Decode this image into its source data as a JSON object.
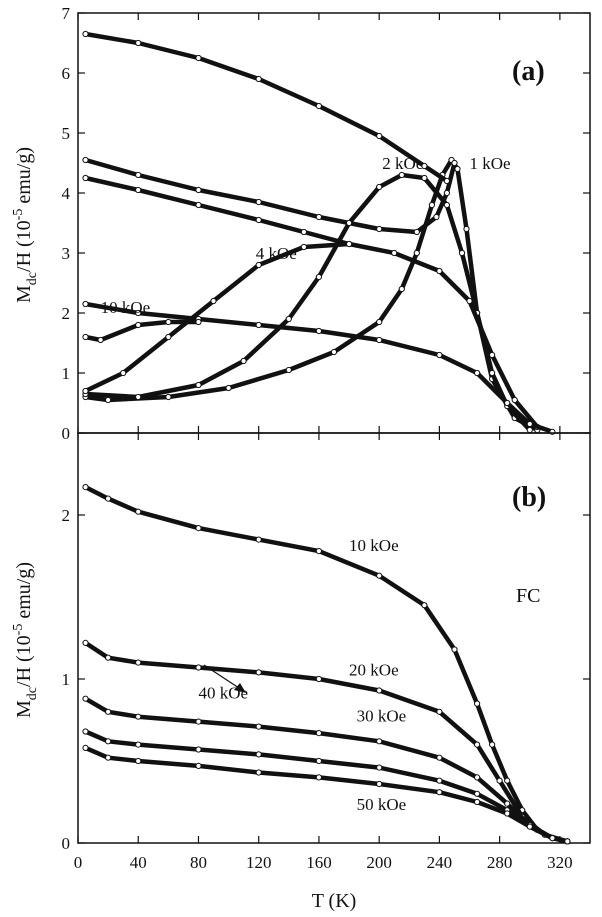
{
  "figure": {
    "xlabel": "T (K)",
    "x_ticks": [
      "0",
      "40",
      "80",
      "120",
      "160",
      "200",
      "240",
      "280",
      "320"
    ]
  },
  "chart_data": [
    {
      "type": "line",
      "panel_label": "(a)",
      "xlabel": "T (K)",
      "ylabel_main": "M",
      "ylabel_sub": "dc",
      "ylabel_rest": "/H (10",
      "ylabel_sup": "-5",
      "ylabel_unit": " emu/g)",
      "xlim": [
        0,
        340
      ],
      "ylim": [
        0,
        7
      ],
      "y_ticks": [
        "0",
        "1",
        "2",
        "3",
        "4",
        "5",
        "6",
        "7"
      ],
      "ink_color": "#111111",
      "annotations": [
        {
          "text": "1 kOe",
          "x": 260,
          "y": 4.4
        },
        {
          "text": "2 kOe",
          "x": 202,
          "y": 4.4
        },
        {
          "text": "4 kOe",
          "x": 118,
          "y": 2.9
        },
        {
          "text": "10 kOe",
          "x": 15,
          "y": 2.0
        }
      ],
      "series": [
        {
          "name": "1 kOe",
          "x": [
            5,
            20,
            60,
            100,
            140,
            170,
            200,
            215,
            225,
            235,
            242,
            248,
            252,
            258,
            265,
            275,
            290,
            305
          ],
          "y": [
            0.6,
            0.55,
            0.6,
            0.75,
            1.05,
            1.35,
            1.85,
            2.4,
            3.0,
            3.8,
            4.3,
            4.55,
            4.4,
            3.4,
            2.0,
            0.9,
            0.25,
            0.05
          ]
        },
        {
          "name": "1 kOe",
          "x": [
            5,
            40,
            80,
            120,
            160,
            200,
            225,
            238,
            245,
            250
          ],
          "y": [
            4.55,
            4.3,
            4.05,
            3.85,
            3.6,
            3.4,
            3.35,
            3.6,
            4.0,
            4.5
          ]
        },
        {
          "name": "2 kOe",
          "x": [
            5,
            40,
            80,
            110,
            140,
            160,
            180,
            200,
            215,
            230,
            245,
            255,
            265,
            275,
            285,
            300
          ],
          "y": [
            0.65,
            0.6,
            0.8,
            1.2,
            1.9,
            2.6,
            3.5,
            4.1,
            4.3,
            4.25,
            3.8,
            3.0,
            2.0,
            1.0,
            0.45,
            0.05
          ]
        },
        {
          "name": "2 kOe",
          "x": [
            5,
            40,
            80,
            120,
            160,
            200,
            230,
            245
          ],
          "y": [
            6.65,
            6.5,
            6.25,
            5.9,
            5.45,
            4.95,
            4.45,
            4.2
          ]
        },
        {
          "name": "4 kOe",
          "x": [
            5,
            30,
            60,
            90,
            120,
            150,
            180,
            210,
            240,
            260,
            275,
            290,
            305
          ],
          "y": [
            0.7,
            1.0,
            1.6,
            2.2,
            2.8,
            3.1,
            3.15,
            3.0,
            2.7,
            2.2,
            1.3,
            0.55,
            0.1
          ]
        },
        {
          "name": "4 kOe",
          "x": [
            5,
            40,
            80,
            120,
            150,
            180
          ],
          "y": [
            4.25,
            4.05,
            3.8,
            3.55,
            3.35,
            3.15
          ]
        },
        {
          "name": "10 kOe",
          "x": [
            5,
            40,
            80,
            120,
            160,
            200,
            240,
            265,
            285,
            300,
            315
          ],
          "y": [
            2.15,
            2.0,
            1.9,
            1.8,
            1.7,
            1.55,
            1.3,
            1.0,
            0.5,
            0.15,
            0.02
          ]
        },
        {
          "name": "10 kOe",
          "x": [
            5,
            15,
            40,
            60,
            80
          ],
          "y": [
            1.6,
            1.55,
            1.8,
            1.85,
            1.85
          ]
        }
      ]
    },
    {
      "type": "line",
      "panel_label": "(b)",
      "panel_note": "FC",
      "xlabel": "T (K)",
      "ylabel_main": "M",
      "ylabel_sub": "dc",
      "ylabel_rest": "/H (10",
      "ylabel_sup": "-5",
      "ylabel_unit": " emu/g)",
      "xlim": [
        0,
        340
      ],
      "ylim": [
        0,
        2.5
      ],
      "y_ticks": [
        "0",
        "1",
        "2"
      ],
      "ink_color": "#111111",
      "annotations": [
        {
          "text": "10 kOe",
          "x": 180,
          "y": 1.78
        },
        {
          "text": "20 kOe",
          "x": 180,
          "y": 1.02
        },
        {
          "text": "30 kOe",
          "x": 185,
          "y": 0.74
        },
        {
          "text": "40 kOe",
          "x": 80,
          "y": 0.88
        },
        {
          "text": "50 kOe",
          "x": 185,
          "y": 0.2
        }
      ],
      "series": [
        {
          "name": "10 kOe",
          "x": [
            5,
            20,
            40,
            80,
            120,
            160,
            200,
            230,
            250,
            265,
            275,
            285,
            295,
            305,
            315,
            325
          ],
          "y": [
            2.17,
            2.1,
            2.02,
            1.92,
            1.85,
            1.78,
            1.63,
            1.45,
            1.18,
            0.85,
            0.6,
            0.38,
            0.2,
            0.08,
            0.03,
            0.01
          ]
        },
        {
          "name": "20 kOe",
          "x": [
            5,
            20,
            40,
            80,
            120,
            160,
            200,
            240,
            265,
            280,
            295,
            310,
            325
          ],
          "y": [
            1.22,
            1.13,
            1.1,
            1.07,
            1.04,
            1.0,
            0.93,
            0.8,
            0.6,
            0.38,
            0.16,
            0.05,
            0.01
          ]
        },
        {
          "name": "30 kOe",
          "x": [
            5,
            20,
            40,
            80,
            120,
            160,
            200,
            240,
            265,
            285,
            300,
            315,
            325
          ],
          "y": [
            0.88,
            0.8,
            0.77,
            0.74,
            0.71,
            0.67,
            0.62,
            0.52,
            0.4,
            0.24,
            0.11,
            0.03,
            0.01
          ]
        },
        {
          "name": "40 kOe",
          "x": [
            5,
            20,
            40,
            80,
            120,
            160,
            200,
            240,
            265,
            285,
            300,
            315,
            325
          ],
          "y": [
            0.68,
            0.62,
            0.6,
            0.57,
            0.54,
            0.5,
            0.46,
            0.38,
            0.3,
            0.2,
            0.1,
            0.03,
            0.01
          ]
        },
        {
          "name": "50 kOe",
          "x": [
            5,
            20,
            40,
            80,
            120,
            160,
            200,
            240,
            265,
            285,
            300,
            315,
            325
          ],
          "y": [
            0.58,
            0.52,
            0.5,
            0.47,
            0.43,
            0.4,
            0.36,
            0.31,
            0.25,
            0.18,
            0.1,
            0.03,
            0.01
          ]
        }
      ]
    }
  ]
}
